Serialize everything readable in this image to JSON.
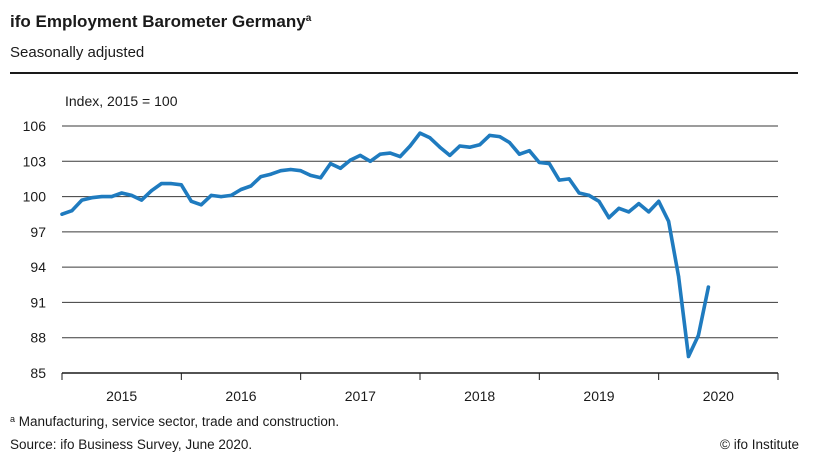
{
  "header": {
    "title": "ifo Employment Barometer Germany",
    "title_marker": "a",
    "subtitle": "Seasonally adjusted"
  },
  "footer": {
    "footnote_marker": "a",
    "footnote": " Manufacturing, service sector, trade and construction.",
    "source": "Source: ifo Business Survey, June 2020.",
    "credit": "© ifo Institute"
  },
  "chart_data": {
    "type": "line",
    "ylabel": "Index, 2015 = 100",
    "ylim": [
      85,
      106
    ],
    "yticks": [
      106,
      103,
      100,
      97,
      94,
      91,
      88,
      85
    ],
    "grid": true,
    "categories": [
      "2015",
      "2016",
      "2017",
      "2018",
      "2019",
      "2020"
    ],
    "x_range": [
      0,
      72
    ],
    "line_color": "#1f7bbf",
    "series": [
      {
        "name": "",
        "x": [
          0,
          1,
          2,
          3,
          4,
          5,
          6,
          7,
          8,
          9,
          10,
          11,
          12,
          13,
          14,
          15,
          16,
          17,
          18,
          19,
          20,
          21,
          22,
          23,
          24,
          25,
          26,
          27,
          28,
          29,
          30,
          31,
          32,
          33,
          34,
          35,
          36,
          37,
          38,
          39,
          40,
          41,
          42,
          43,
          44,
          45,
          46,
          47,
          48,
          49,
          50,
          51,
          52,
          53,
          54,
          55,
          56,
          57,
          58,
          59,
          60,
          61,
          62,
          63,
          64,
          65
        ],
        "values": [
          98.5,
          98.8,
          99.7,
          99.9,
          100.0,
          100.0,
          100.3,
          100.1,
          99.7,
          100.5,
          101.1,
          101.1,
          101.0,
          99.6,
          99.3,
          100.1,
          100.0,
          100.1,
          100.6,
          100.9,
          101.7,
          101.9,
          102.2,
          102.3,
          102.2,
          101.8,
          101.6,
          102.8,
          102.4,
          103.1,
          103.5,
          103.0,
          103.6,
          103.7,
          103.4,
          104.3,
          105.4,
          105.0,
          104.2,
          103.5,
          104.3,
          104.2,
          104.4,
          105.2,
          105.1,
          104.6,
          103.6,
          103.9,
          102.9,
          102.8,
          101.4,
          101.5,
          100.3,
          100.1,
          99.6,
          98.2,
          99.0,
          98.7,
          99.4,
          98.7,
          99.6,
          97.9,
          93.2,
          86.4,
          88.2,
          92.3
        ]
      }
    ]
  }
}
